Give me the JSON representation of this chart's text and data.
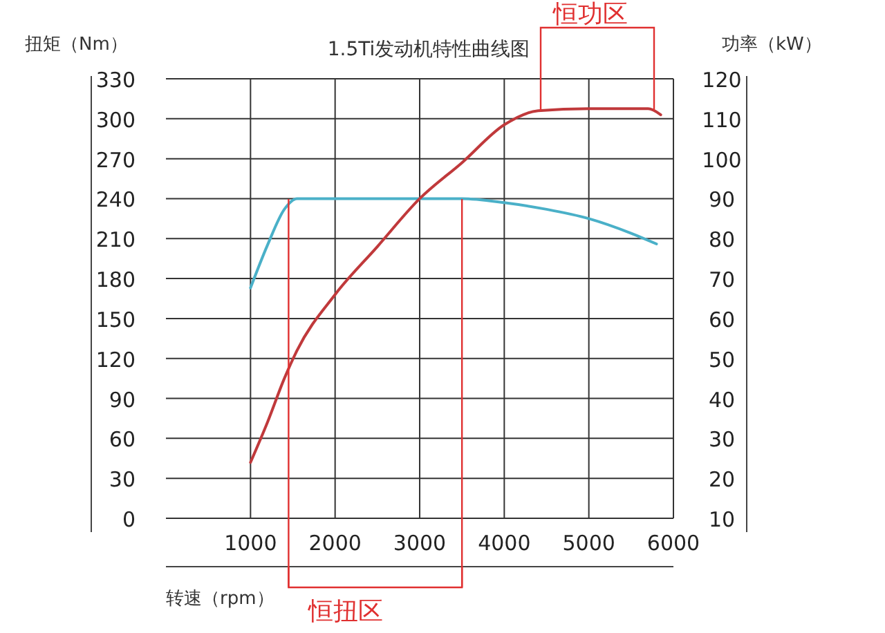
{
  "chart_data": {
    "type": "line",
    "title": "1.5Ti发动机特性曲线图",
    "xlabel": "转速（rpm）",
    "ylabel": "扭矩（Nm）",
    "y2label": "功率（kW）",
    "xlim": [
      0,
      6000
    ],
    "xticks": [
      1000,
      2000,
      3000,
      4000,
      5000,
      6000
    ],
    "ylim": [
      0,
      330
    ],
    "yticks": [
      0,
      30,
      60,
      90,
      120,
      150,
      180,
      210,
      240,
      270,
      300,
      330
    ],
    "y2lim": [
      10,
      120
    ],
    "y2ticks": [
      10,
      20,
      30,
      40,
      50,
      60,
      70,
      80,
      90,
      100,
      110,
      120
    ],
    "grid": true,
    "marker": "none",
    "line_style": "solid",
    "series": [
      {
        "color": "#4ab0c8",
        "x": [
          1000,
          1200,
          1400,
          1550,
          2000,
          3000,
          3500,
          4000,
          4500,
          5000,
          5500,
          5800
        ],
        "values": [
          173,
          205,
          232,
          240,
          240,
          240,
          240,
          237,
          232,
          225,
          214,
          206
        ]
      },
      {
        "color": "#c0393b",
        "axis": "y2",
        "x": [
          1000,
          1200,
          1400,
          1550,
          2000,
          2500,
          3000,
          3500,
          4000,
          4400,
          5000,
          5700,
          5850
        ],
        "values": [
          24,
          34,
          45,
          52,
          66,
          78,
          90,
          99,
          108.5,
          112,
          112.5,
          112.5,
          111
        ]
      }
    ],
    "ref_lines": [
      {
        "axis": "x",
        "value": 1450,
        "color": "#e03030"
      },
      {
        "axis": "x",
        "value": 3500,
        "color": "#e03030"
      }
    ],
    "annotations": [
      "恒扭区",
      "恒功区"
    ]
  }
}
